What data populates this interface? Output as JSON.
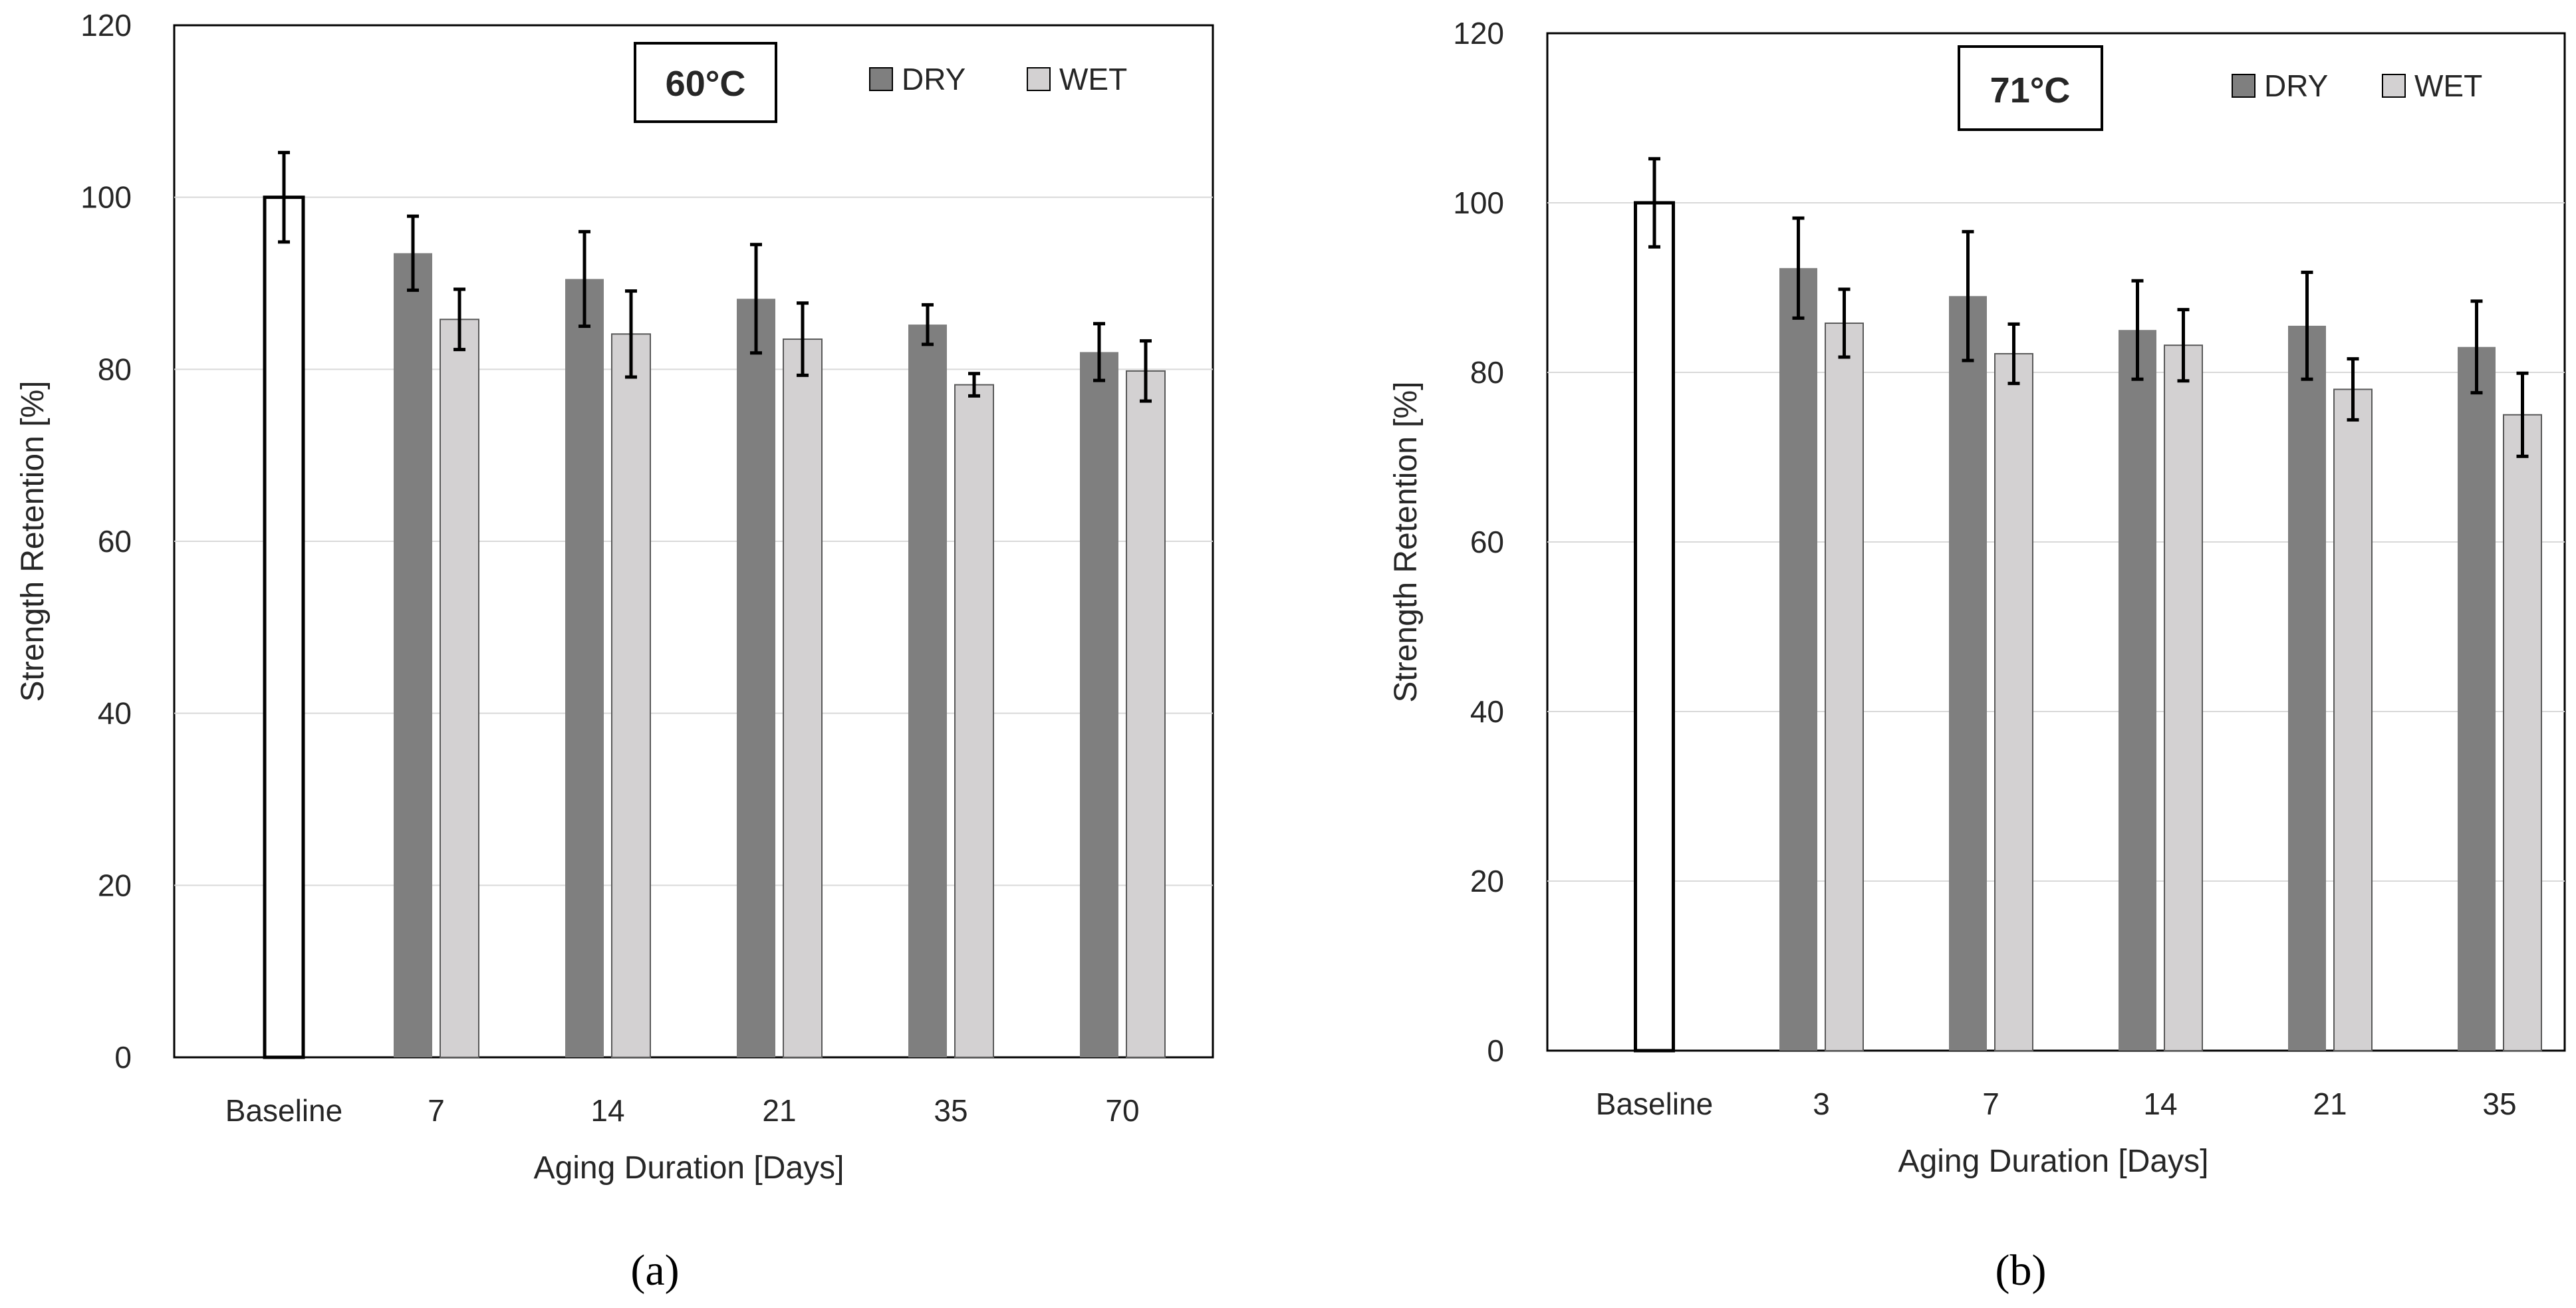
{
  "figure": {
    "panel_labels": [
      "(a)",
      "(b)"
    ]
  },
  "colors": {
    "dry": "#7f7f7f",
    "wet": "#d3d1d2",
    "baseline": "#ffffff",
    "stroke": "#000000",
    "grid": "#d9d9d9",
    "error_bar": "#000000"
  },
  "chart_data": [
    {
      "type": "bar",
      "panel": "(a)",
      "temperature_label": "60°C",
      "xlabel": "Aging Duration [Days]",
      "ylabel": "Strength Retention [%]",
      "ylim": [
        0,
        120
      ],
      "yticks": [
        0,
        20,
        40,
        60,
        80,
        100,
        120
      ],
      "grid": true,
      "legend": {
        "placement": "top-right",
        "entries": [
          "DRY",
          "WET"
        ]
      },
      "categories": [
        "Baseline",
        "7",
        "14",
        "21",
        "35",
        "70"
      ],
      "baseline": {
        "value": 100,
        "error": 5.2
      },
      "series": [
        {
          "name": "DRY",
          "values": [
            null,
            93.5,
            90.5,
            88.2,
            85.2,
            82.0
          ],
          "errors": [
            null,
            4.3,
            5.5,
            6.3,
            2.3,
            3.3
          ]
        },
        {
          "name": "WET",
          "values": [
            null,
            85.8,
            84.1,
            83.5,
            78.2,
            79.8
          ],
          "errors": [
            null,
            3.5,
            5.0,
            4.2,
            1.3,
            3.5
          ]
        }
      ]
    },
    {
      "type": "bar",
      "panel": "(b)",
      "temperature_label": "71°C",
      "xlabel": "Aging Duration [Days]",
      "ylabel": "Strength Retention [%]",
      "ylim": [
        0,
        120
      ],
      "yticks": [
        0,
        20,
        40,
        60,
        80,
        100,
        120
      ],
      "grid": true,
      "legend": {
        "placement": "top-right",
        "entries": [
          "DRY",
          "WET"
        ]
      },
      "categories": [
        "Baseline",
        "3",
        "7",
        "14",
        "21",
        "35"
      ],
      "baseline": {
        "value": 100,
        "error": 5.2
      },
      "series": [
        {
          "name": "DRY",
          "values": [
            null,
            92.3,
            89.0,
            85.0,
            85.5,
            83.0
          ],
          "errors": [
            null,
            5.9,
            7.6,
            5.8,
            6.3,
            5.4
          ]
        },
        {
          "name": "WET",
          "values": [
            null,
            85.8,
            82.2,
            83.2,
            78.0,
            75.0
          ],
          "errors": [
            null,
            4.0,
            3.5,
            4.2,
            3.6,
            4.9
          ]
        }
      ]
    }
  ]
}
